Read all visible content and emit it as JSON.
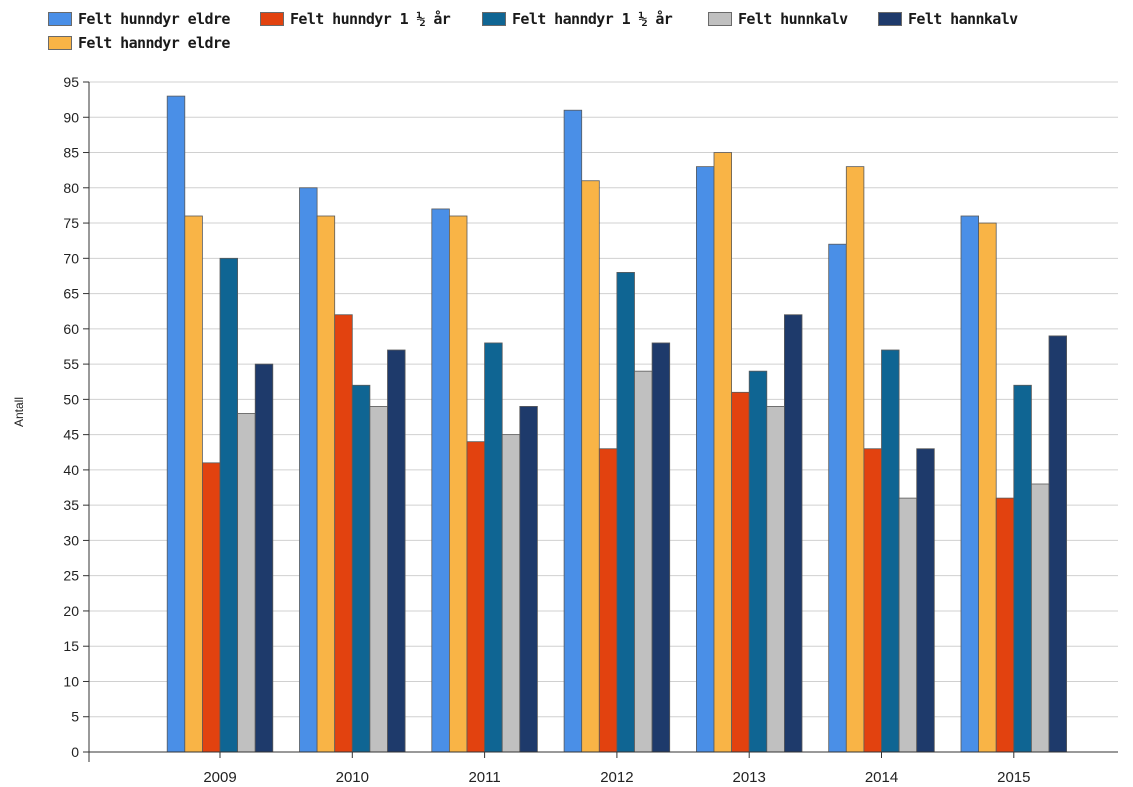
{
  "chart_data": {
    "type": "bar",
    "categories": [
      "2009",
      "2010",
      "2011",
      "2012",
      "2013",
      "2014",
      "2015"
    ],
    "series": [
      {
        "name": "Felt hunndyr eldre",
        "color": "#4a8fe7",
        "values": [
          93,
          80,
          77,
          91,
          83,
          72,
          76
        ]
      },
      {
        "name": "Felt hanndyr eldre",
        "color": "#f9b446",
        "values": [
          76,
          76,
          76,
          81,
          85,
          83,
          75
        ]
      },
      {
        "name": "Felt hunndyr 1 ½ år",
        "color": "#e2420f",
        "values": [
          41,
          62,
          44,
          43,
          51,
          43,
          36
        ]
      },
      {
        "name": "Felt hanndyr 1 ½ år",
        "color": "#0f6593",
        "values": [
          70,
          52,
          58,
          68,
          54,
          57,
          52
        ]
      },
      {
        "name": "Felt hunnkalv",
        "color": "#c0c0c0",
        "values": [
          48,
          49,
          45,
          54,
          49,
          36,
          38
        ]
      },
      {
        "name": "Felt hannkalv",
        "color": "#1e3a6b",
        "values": [
          55,
          57,
          49,
          58,
          62,
          43,
          59
        ]
      }
    ],
    "xlabel": "",
    "ylabel": "Antall",
    "ylim": [
      0,
      95
    ],
    "ytick_step": 5,
    "grid": true,
    "legend_position": "top-left"
  }
}
